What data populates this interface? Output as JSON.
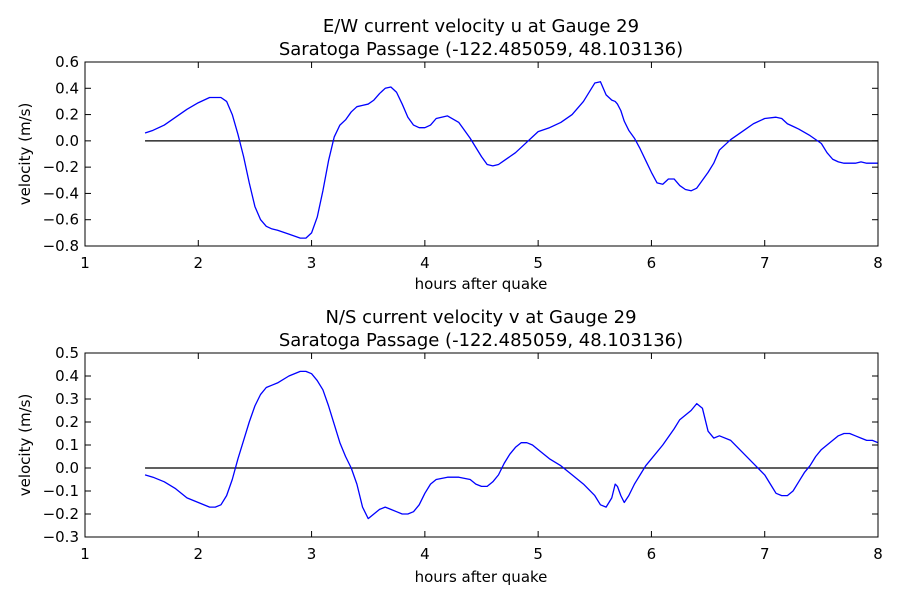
{
  "chart_data": [
    {
      "type": "line",
      "title": "E/W current velocity u at Gauge 29",
      "subtitle": "Saratoga Passage  (-122.485059, 48.103136)",
      "xlabel": "hours after quake",
      "ylabel": "velocity (m/s)",
      "xlim": [
        1,
        8
      ],
      "ylim": [
        -0.8,
        0.6
      ],
      "xticks": [
        1,
        2,
        3,
        4,
        5,
        6,
        7,
        8
      ],
      "yticks": [
        -0.8,
        -0.6,
        -0.4,
        -0.2,
        0.0,
        0.2,
        0.4,
        0.6
      ],
      "ytick_labels": [
        "−0.8",
        "−0.6",
        "−0.4",
        "−0.2",
        "0.0",
        "0.2",
        "0.4",
        "0.6"
      ],
      "reference_line": {
        "y": 0,
        "x": [
          1.53,
          8
        ],
        "color": "#000000"
      },
      "series": [
        {
          "color": "#0000ff",
          "x": [
            1.53,
            1.6,
            1.7,
            1.8,
            1.9,
            2.0,
            2.1,
            2.2,
            2.25,
            2.3,
            2.35,
            2.4,
            2.45,
            2.5,
            2.55,
            2.6,
            2.65,
            2.7,
            2.8,
            2.9,
            2.95,
            3.0,
            3.05,
            3.1,
            3.15,
            3.2,
            3.25,
            3.3,
            3.35,
            3.4,
            3.45,
            3.5,
            3.55,
            3.6,
            3.65,
            3.7,
            3.75,
            3.8,
            3.85,
            3.9,
            3.95,
            4.0,
            4.05,
            4.1,
            4.2,
            4.3,
            4.4,
            4.5,
            4.55,
            4.6,
            4.65,
            4.7,
            4.75,
            4.8,
            4.85,
            4.9,
            4.95,
            5.0,
            5.1,
            5.2,
            5.3,
            5.4,
            5.5,
            5.55,
            5.6,
            5.65,
            5.68,
            5.7,
            5.73,
            5.76,
            5.8,
            5.85,
            5.9,
            5.95,
            6.0,
            6.05,
            6.1,
            6.15,
            6.2,
            6.25,
            6.3,
            6.35,
            6.4,
            6.45,
            6.5,
            6.55,
            6.6,
            6.7,
            6.8,
            6.9,
            7.0,
            7.1,
            7.15,
            7.2,
            7.25,
            7.3,
            7.4,
            7.5,
            7.55,
            7.6,
            7.65,
            7.7,
            7.75,
            7.8,
            7.85,
            7.9,
            7.95,
            8.0
          ],
          "y": [
            0.06,
            0.08,
            0.12,
            0.18,
            0.24,
            0.29,
            0.33,
            0.33,
            0.3,
            0.2,
            0.05,
            -0.12,
            -0.32,
            -0.5,
            -0.6,
            -0.65,
            -0.67,
            -0.68,
            -0.71,
            -0.74,
            -0.74,
            -0.7,
            -0.58,
            -0.38,
            -0.15,
            0.03,
            0.12,
            0.16,
            0.22,
            0.26,
            0.27,
            0.28,
            0.31,
            0.36,
            0.4,
            0.41,
            0.37,
            0.28,
            0.18,
            0.12,
            0.1,
            0.1,
            0.12,
            0.17,
            0.19,
            0.14,
            0.02,
            -0.12,
            -0.18,
            -0.19,
            -0.18,
            -0.15,
            -0.12,
            -0.09,
            -0.05,
            -0.01,
            0.03,
            0.07,
            0.1,
            0.14,
            0.2,
            0.3,
            0.44,
            0.45,
            0.35,
            0.31,
            0.3,
            0.28,
            0.23,
            0.15,
            0.08,
            0.02,
            -0.06,
            -0.15,
            -0.24,
            -0.32,
            -0.33,
            -0.29,
            -0.29,
            -0.34,
            -0.37,
            -0.38,
            -0.36,
            -0.3,
            -0.24,
            -0.17,
            -0.07,
            0.01,
            0.07,
            0.13,
            0.17,
            0.18,
            0.17,
            0.13,
            0.11,
            0.09,
            0.04,
            -0.02,
            -0.09,
            -0.14,
            -0.16,
            -0.17,
            -0.17,
            -0.17,
            -0.16,
            -0.17,
            -0.17,
            -0.17
          ]
        }
      ]
    },
    {
      "type": "line",
      "title": "N/S current velocity v at Gauge 29",
      "subtitle": "Saratoga Passage  (-122.485059, 48.103136)",
      "xlabel": "hours after quake",
      "ylabel": "velocity (m/s)",
      "xlim": [
        1,
        8
      ],
      "ylim": [
        -0.3,
        0.5
      ],
      "xticks": [
        1,
        2,
        3,
        4,
        5,
        6,
        7,
        8
      ],
      "yticks": [
        -0.3,
        -0.2,
        -0.1,
        0.0,
        0.1,
        0.2,
        0.3,
        0.4,
        0.5
      ],
      "ytick_labels": [
        "−0.3",
        "−0.2",
        "−0.1",
        "0.0",
        "0.1",
        "0.2",
        "0.3",
        "0.4",
        "0.5"
      ],
      "reference_line": {
        "y": 0,
        "x": [
          1.53,
          8
        ],
        "color": "#000000"
      },
      "series": [
        {
          "color": "#0000ff",
          "x": [
            1.53,
            1.6,
            1.7,
            1.8,
            1.9,
            2.0,
            2.1,
            2.15,
            2.2,
            2.25,
            2.3,
            2.35,
            2.4,
            2.45,
            2.5,
            2.55,
            2.6,
            2.65,
            2.7,
            2.8,
            2.9,
            2.95,
            3.0,
            3.05,
            3.1,
            3.15,
            3.2,
            3.25,
            3.3,
            3.35,
            3.4,
            3.45,
            3.5,
            3.55,
            3.6,
            3.65,
            3.7,
            3.75,
            3.8,
            3.85,
            3.9,
            3.95,
            4.0,
            4.05,
            4.1,
            4.2,
            4.3,
            4.4,
            4.45,
            4.5,
            4.55,
            4.6,
            4.65,
            4.7,
            4.75,
            4.8,
            4.85,
            4.9,
            4.95,
            5.0,
            5.1,
            5.2,
            5.3,
            5.4,
            5.5,
            5.55,
            5.6,
            5.65,
            5.68,
            5.7,
            5.73,
            5.76,
            5.8,
            5.85,
            5.9,
            5.95,
            6.0,
            6.1,
            6.2,
            6.25,
            6.3,
            6.35,
            6.4,
            6.45,
            6.5,
            6.55,
            6.6,
            6.7,
            6.8,
            6.9,
            7.0,
            7.05,
            7.1,
            7.15,
            7.2,
            7.25,
            7.3,
            7.35,
            7.4,
            7.45,
            7.5,
            7.55,
            7.6,
            7.65,
            7.7,
            7.75,
            7.8,
            7.85,
            7.9,
            7.95,
            8.0
          ],
          "y": [
            -0.03,
            -0.04,
            -0.06,
            -0.09,
            -0.13,
            -0.15,
            -0.17,
            -0.17,
            -0.16,
            -0.12,
            -0.05,
            0.04,
            0.12,
            0.2,
            0.27,
            0.32,
            0.35,
            0.36,
            0.37,
            0.4,
            0.42,
            0.42,
            0.41,
            0.38,
            0.34,
            0.27,
            0.19,
            0.11,
            0.05,
            0.0,
            -0.07,
            -0.17,
            -0.22,
            -0.2,
            -0.18,
            -0.17,
            -0.18,
            -0.19,
            -0.2,
            -0.2,
            -0.19,
            -0.16,
            -0.11,
            -0.07,
            -0.05,
            -0.04,
            -0.04,
            -0.05,
            -0.07,
            -0.08,
            -0.08,
            -0.06,
            -0.03,
            0.02,
            0.06,
            0.09,
            0.11,
            0.11,
            0.1,
            0.08,
            0.04,
            0.01,
            -0.03,
            -0.07,
            -0.12,
            -0.16,
            -0.17,
            -0.13,
            -0.07,
            -0.08,
            -0.12,
            -0.15,
            -0.12,
            -0.07,
            -0.03,
            0.01,
            0.04,
            0.1,
            0.17,
            0.21,
            0.23,
            0.25,
            0.28,
            0.26,
            0.16,
            0.13,
            0.14,
            0.12,
            0.07,
            0.02,
            -0.03,
            -0.07,
            -0.11,
            -0.12,
            -0.12,
            -0.1,
            -0.06,
            -0.02,
            0.01,
            0.05,
            0.08,
            0.1,
            0.12,
            0.14,
            0.15,
            0.15,
            0.14,
            0.13,
            0.12,
            0.12,
            0.11
          ]
        }
      ]
    }
  ]
}
